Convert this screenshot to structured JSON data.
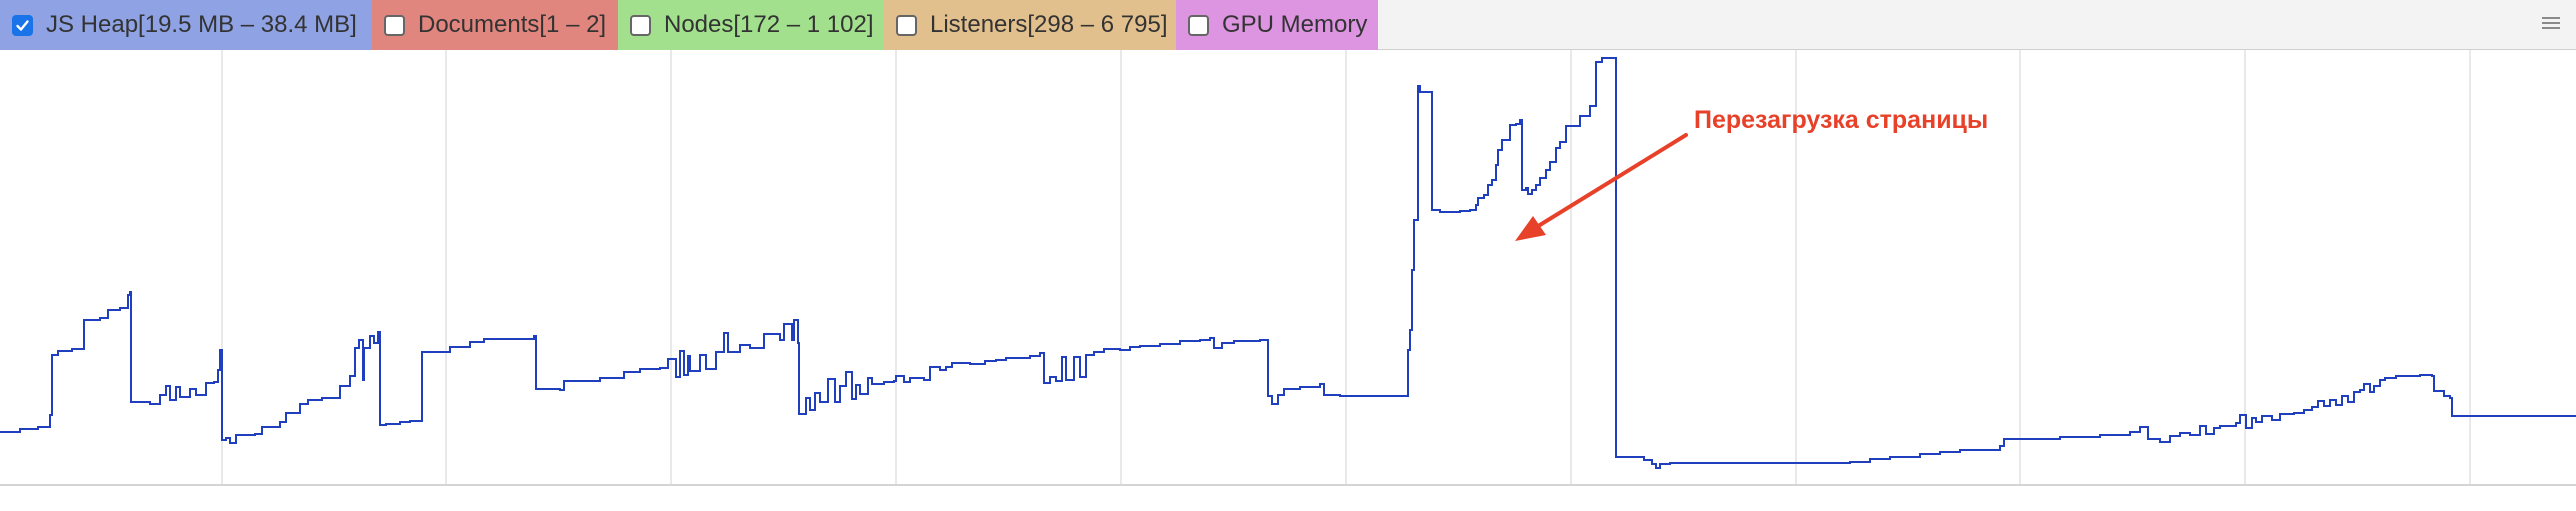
{
  "counters": [
    {
      "id": "js-heap",
      "label": "JS Heap[19.5 MB – 38.4 MB]",
      "checked": true,
      "color": "#8fa2e3"
    },
    {
      "id": "documents",
      "label": "Documents[1 – 2]",
      "checked": false,
      "color": "#e0867f"
    },
    {
      "id": "nodes",
      "label": "Nodes[172 – 1 102]",
      "checked": false,
      "color": "#a2e08d"
    },
    {
      "id": "listeners",
      "label": "Listeners[298 – 6 795]",
      "checked": false,
      "color": "#e2c08e"
    },
    {
      "id": "gpu-memory",
      "label": "GPU Memory",
      "checked": false,
      "color": "#dd95e2"
    }
  ],
  "graph": {
    "line_color": "#1f3fbf",
    "annotation": {
      "text": "Перезагрузка страницы",
      "color": "#e8412a"
    }
  },
  "icons": {
    "menu": "hamburger-icon",
    "checkbox_check": "checkmark-icon",
    "annotation_arrow": "arrow-icon"
  }
}
